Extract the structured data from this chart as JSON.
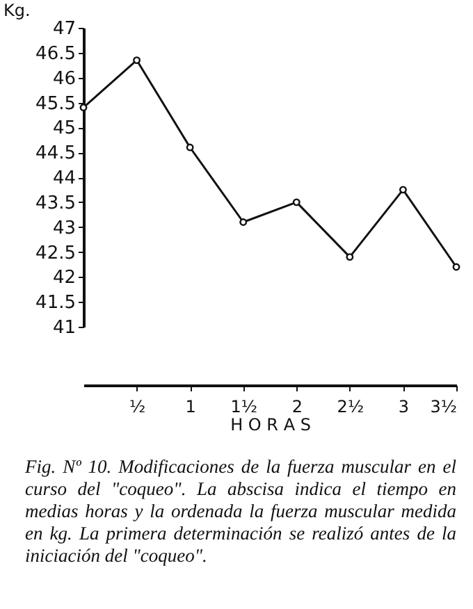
{
  "chart_data": {
    "type": "line",
    "ylabel": "Kg.",
    "xlabel": "H O R A S",
    "x": [
      0,
      0.5,
      1,
      1.5,
      2,
      2.5,
      3,
      3.5
    ],
    "values": [
      45.4,
      46.35,
      44.6,
      43.1,
      43.5,
      42.4,
      43.75,
      42.2
    ],
    "color": "#111111",
    "marker": "circle",
    "line_style": "solid",
    "grid": false,
    "xlim": [
      0,
      3.5
    ],
    "xticks": [
      {
        "value": 0.5,
        "label": "½"
      },
      1,
      {
        "value": 1.5,
        "label": "1½"
      },
      2,
      {
        "value": 2.5,
        "label": "2½"
      },
      3,
      {
        "value": 3.5,
        "label": "3½"
      }
    ],
    "ylim": [
      41,
      47
    ],
    "yticks": [
      41,
      41.5,
      42,
      42.5,
      43,
      43.5,
      44,
      44.5,
      45,
      45.5,
      46,
      46.5,
      47
    ],
    "annotations": [
      "Fig. Nº 10.  Modificaciones de la fuerza muscular en el curso del \"coqueo\".  La abscisa indica el tiempo en medias horas y la ordenada la fuerza muscular medida en kg. La primera determinación se realizó antes de la iniciación del \"coqueo\"."
    ]
  }
}
